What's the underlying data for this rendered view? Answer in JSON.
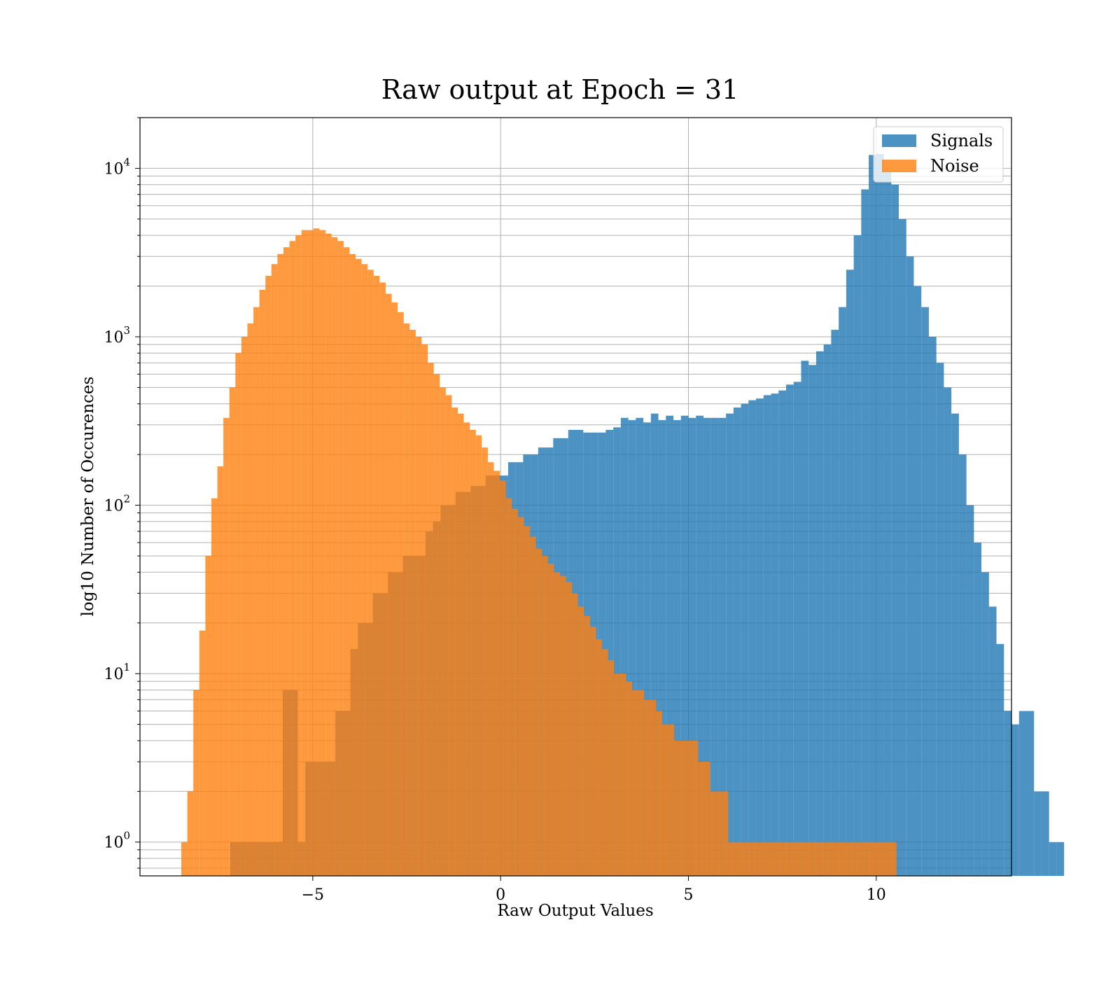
{
  "chart_data": {
    "type": "bar",
    "title": "Raw output at Epoch = 31",
    "xlabel": "Raw Output Values",
    "ylabel": "log10 Number of Occurences",
    "xlim": [
      -9.6,
      13.6
    ],
    "ylim": [
      0.63,
      20000
    ],
    "yscale": "log",
    "grid": true,
    "legend_position": "top-right",
    "x_ticks": [
      {
        "value": -5,
        "label": "−5"
      },
      {
        "value": 0,
        "label": "0"
      },
      {
        "value": 5,
        "label": "5"
      },
      {
        "value": 10,
        "label": "10"
      }
    ],
    "y_ticks": [
      {
        "value": 1,
        "base": "10",
        "exp": "0"
      },
      {
        "value": 10,
        "base": "10",
        "exp": "1"
      },
      {
        "value": 100,
        "base": "10",
        "exp": "2"
      },
      {
        "value": 1000,
        "base": "10",
        "exp": "3"
      },
      {
        "value": 10000,
        "base": "10",
        "exp": "4"
      }
    ],
    "series": [
      {
        "name": "Signals",
        "color": "#1f77b4",
        "opacity": 0.8,
        "bin_start": -7.2,
        "bin_width": 0.2,
        "values": [
          1,
          1,
          1,
          1,
          1,
          1,
          1,
          8,
          8,
          1,
          3,
          3,
          3,
          3,
          6,
          6,
          14,
          20,
          20,
          30,
          30,
          40,
          40,
          50,
          50,
          50,
          70,
          80,
          100,
          100,
          120,
          120,
          130,
          130,
          150,
          150,
          150,
          180,
          180,
          200,
          200,
          220,
          220,
          250,
          250,
          280,
          280,
          270,
          270,
          270,
          280,
          290,
          330,
          320,
          330,
          310,
          350,
          320,
          340,
          320,
          340,
          330,
          340,
          330,
          330,
          330,
          350,
          380,
          400,
          420,
          430,
          450,
          460,
          480,
          520,
          540,
          720,
          680,
          820,
          900,
          1100,
          1500,
          2500,
          4000,
          7500,
          12000,
          12200,
          9500,
          8000,
          5000,
          3000,
          2000,
          1500,
          1000,
          700,
          500,
          350,
          200,
          100,
          60,
          40,
          25,
          15,
          6,
          5,
          6,
          6,
          2,
          2,
          1,
          1
        ]
      },
      {
        "name": "Noise",
        "color": "#ff7f0e",
        "opacity": 0.8,
        "bin_start": -8.5,
        "bin_width": 0.16,
        "values": [
          1,
          2,
          8,
          18,
          50,
          110,
          170,
          330,
          500,
          800,
          1000,
          1200,
          1500,
          1900,
          2300,
          2700,
          3100,
          3400,
          3700,
          4000,
          4300,
          4300,
          4400,
          4300,
          4100,
          3900,
          3700,
          3400,
          3100,
          2900,
          2700,
          2500,
          2300,
          2100,
          1800,
          1600,
          1400,
          1200,
          1100,
          1000,
          900,
          700,
          600,
          500,
          450,
          380,
          350,
          310,
          280,
          260,
          220,
          180,
          160,
          140,
          110,
          95,
          85,
          75,
          65,
          55,
          50,
          45,
          40,
          38,
          35,
          30,
          25,
          22,
          19,
          16,
          14,
          12,
          10,
          10,
          9,
          8,
          8,
          7,
          7,
          6,
          5,
          5,
          4,
          4,
          4,
          4,
          3,
          3,
          2,
          2,
          2,
          1,
          1,
          1,
          1,
          1,
          1,
          1,
          1,
          1,
          1,
          1,
          1,
          1,
          1,
          1,
          1,
          1,
          1,
          1,
          1,
          1,
          1,
          1,
          1,
          1,
          1,
          1,
          1
        ]
      }
    ]
  }
}
